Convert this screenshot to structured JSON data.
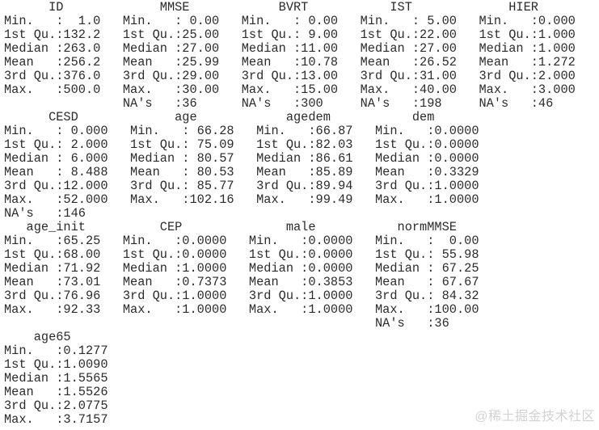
{
  "page": {
    "background": "#ffffff",
    "text_color": "#2b2b2b",
    "content_kind": "r-summary-output"
  },
  "watermark": {
    "text": "@稀土掘金技术社区",
    "color": "#d2d2d2"
  },
  "summary": {
    "stat_labels": [
      "Min.   ",
      "1st Qu.",
      "Median ",
      "Mean   ",
      "3rd Qu.",
      "Max.   ",
      "NA's   "
    ],
    "blocks": [
      [
        {
          "name": "ID",
          "name_pad": 6,
          "width": 16,
          "values": [
            "  1.0",
            "132.2",
            "263.0",
            "256.2",
            "376.0",
            "500.0",
            null
          ]
        },
        {
          "name": "MMSE",
          "name_pad": 5,
          "width": 16,
          "values": [
            " 0.00",
            "25.00",
            "27.00",
            "25.99",
            "29.00",
            "30.00",
            "36"
          ]
        },
        {
          "name": "BVRT",
          "name_pad": 5,
          "width": 16,
          "values": [
            " 0.00",
            " 9.00",
            "11.00",
            "10.78",
            "13.00",
            "15.00",
            "300"
          ]
        },
        {
          "name": "IST",
          "name_pad": 4,
          "width": 16,
          "values": [
            " 5.00",
            "22.00",
            "27.00",
            "26.52",
            "31.00",
            "40.00",
            "198"
          ]
        },
        {
          "name": "HIER",
          "name_pad": 4,
          "width": 16,
          "values": [
            "0.000",
            "1.000",
            "1.000",
            "1.272",
            "2.000",
            "3.000",
            "46"
          ]
        }
      ],
      [
        {
          "name": "CESD",
          "name_pad": 6,
          "width": 17,
          "values": [
            " 0.000",
            " 2.000",
            " 6.000",
            " 8.488",
            "12.000",
            "52.000",
            "146"
          ]
        },
        {
          "name": "age",
          "name_pad": 6,
          "width": 17,
          "values": [
            " 66.28",
            " 75.09",
            " 80.57",
            " 80.53",
            " 85.77",
            "102.16",
            null
          ]
        },
        {
          "name": "agedem",
          "name_pad": 4,
          "width": 16,
          "values": [
            "66.87",
            "82.03",
            "86.61",
            "85.89",
            "89.94",
            "99.49",
            null
          ]
        },
        {
          "name": "dem",
          "name_pad": 5,
          "width": 17,
          "values": [
            "0.0000",
            "0.0000",
            "0.0000",
            "0.3329",
            "1.0000",
            "1.0000",
            null
          ]
        }
      ],
      [
        {
          "name": "age_init",
          "name_pad": 3,
          "width": 16,
          "values": [
            "65.25",
            "68.00",
            "71.92",
            "73.01",
            "76.96",
            "92.33",
            null
          ]
        },
        {
          "name": "CEP",
          "name_pad": 5,
          "width": 17,
          "values": [
            "0.0000",
            "0.0000",
            "1.0000",
            "0.7373",
            "1.0000",
            "1.0000",
            null
          ]
        },
        {
          "name": "male",
          "name_pad": 5,
          "width": 17,
          "values": [
            "0.0000",
            "0.0000",
            "0.0000",
            "0.3853",
            "1.0000",
            "1.0000",
            null
          ]
        },
        {
          "name": "normMMSE",
          "name_pad": 3,
          "width": 17,
          "values": [
            "  0.00",
            " 55.98",
            " 67.25",
            " 67.67",
            " 84.32",
            "100.00",
            "36"
          ]
        }
      ],
      [
        {
          "name": "age65",
          "name_pad": 4,
          "width": 17,
          "values": [
            "0.1277",
            "1.0090",
            "1.5565",
            "1.5526",
            "2.0775",
            "3.7157",
            null
          ]
        }
      ]
    ]
  }
}
